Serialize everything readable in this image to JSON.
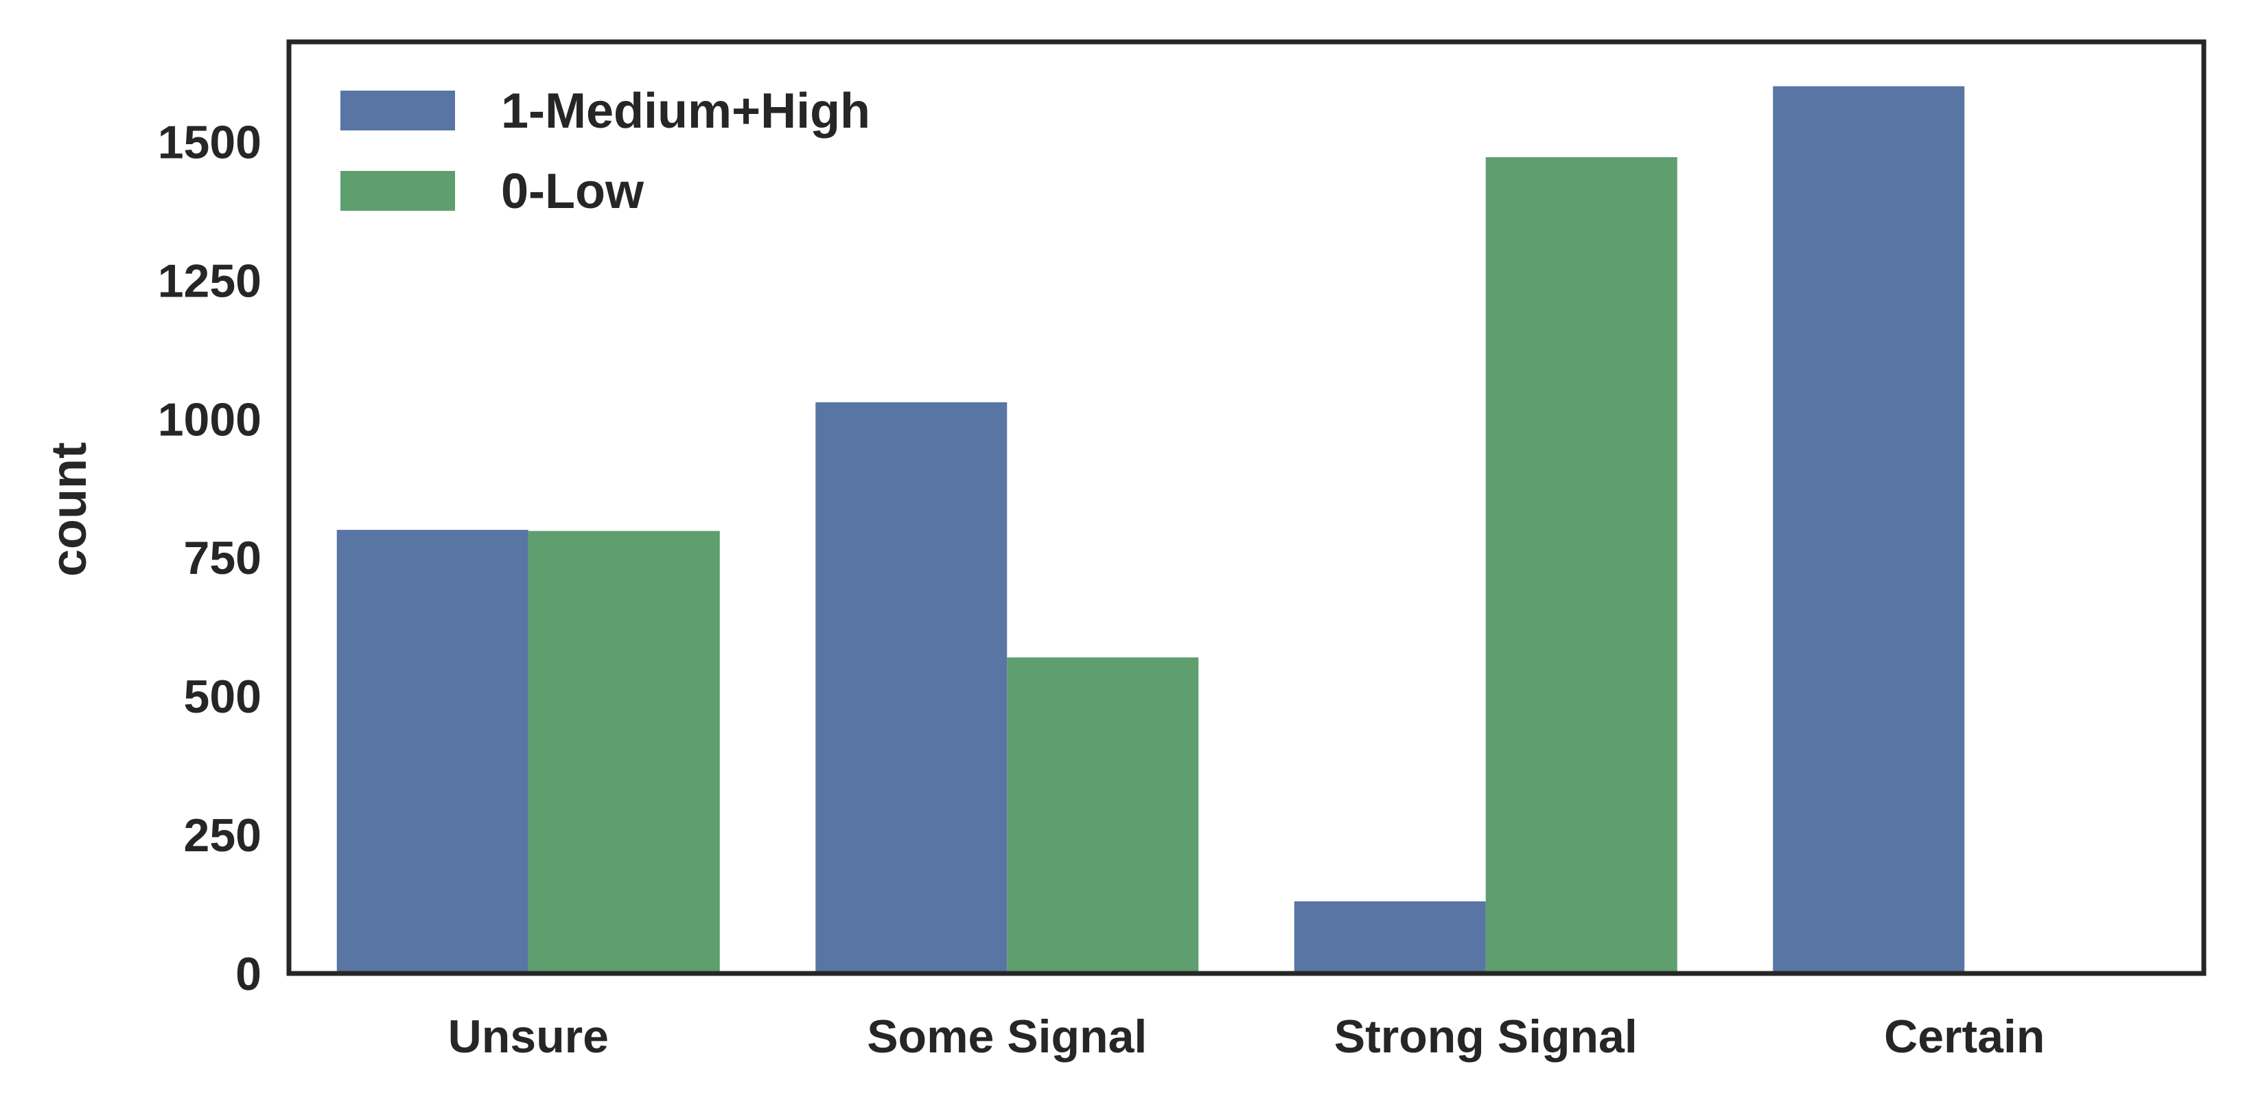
{
  "chart_data": {
    "type": "bar",
    "categories": [
      "Unsure",
      "Some Signal",
      "Strong Signal",
      "Certain"
    ],
    "series": [
      {
        "name": "1-Medium+High",
        "color": "#5875a4",
        "values": [
          800,
          1030,
          130,
          1600
        ]
      },
      {
        "name": "0-Low",
        "color": "#5f9e6e",
        "values": [
          798,
          570,
          1472,
          0
        ]
      }
    ],
    "title": "",
    "xlabel": "",
    "ylabel": "count",
    "ylim": [
      0,
      1680
    ],
    "yticks": [
      0,
      250,
      500,
      750,
      1000,
      1250,
      1500
    ],
    "ytick_labels": [
      "0",
      "250",
      "500",
      "750",
      "1000",
      "1250",
      "1500"
    ],
    "legend_position": "top-left",
    "grid": false
  }
}
